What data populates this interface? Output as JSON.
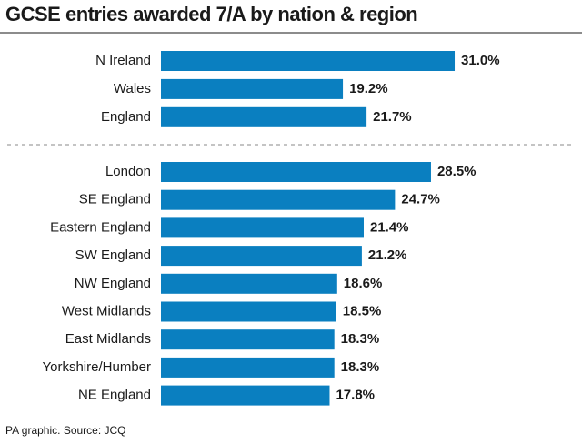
{
  "chart_data": {
    "type": "bar",
    "orientation": "horizontal",
    "title": "GCSE entries awarded 7/A by nation & region",
    "categories": [
      "N Ireland",
      "Wales",
      "England",
      "London",
      "SE England",
      "Eastern England",
      "SW England",
      "NW England",
      "West Midlands",
      "East Midlands",
      "Yorkshire/Humber",
      "NE England"
    ],
    "values": [
      31.0,
      19.2,
      21.7,
      28.5,
      24.7,
      21.4,
      21.2,
      18.6,
      18.5,
      18.3,
      18.3,
      17.8
    ],
    "value_labels": [
      "31.0%",
      "19.2%",
      "21.7%",
      "28.5%",
      "24.7%",
      "21.4%",
      "21.2%",
      "18.6%",
      "18.5%",
      "18.3%",
      "18.3%",
      "17.8%"
    ],
    "color": "#0a7fc0",
    "source": "PA graphic. Source: JCQ"
  }
}
